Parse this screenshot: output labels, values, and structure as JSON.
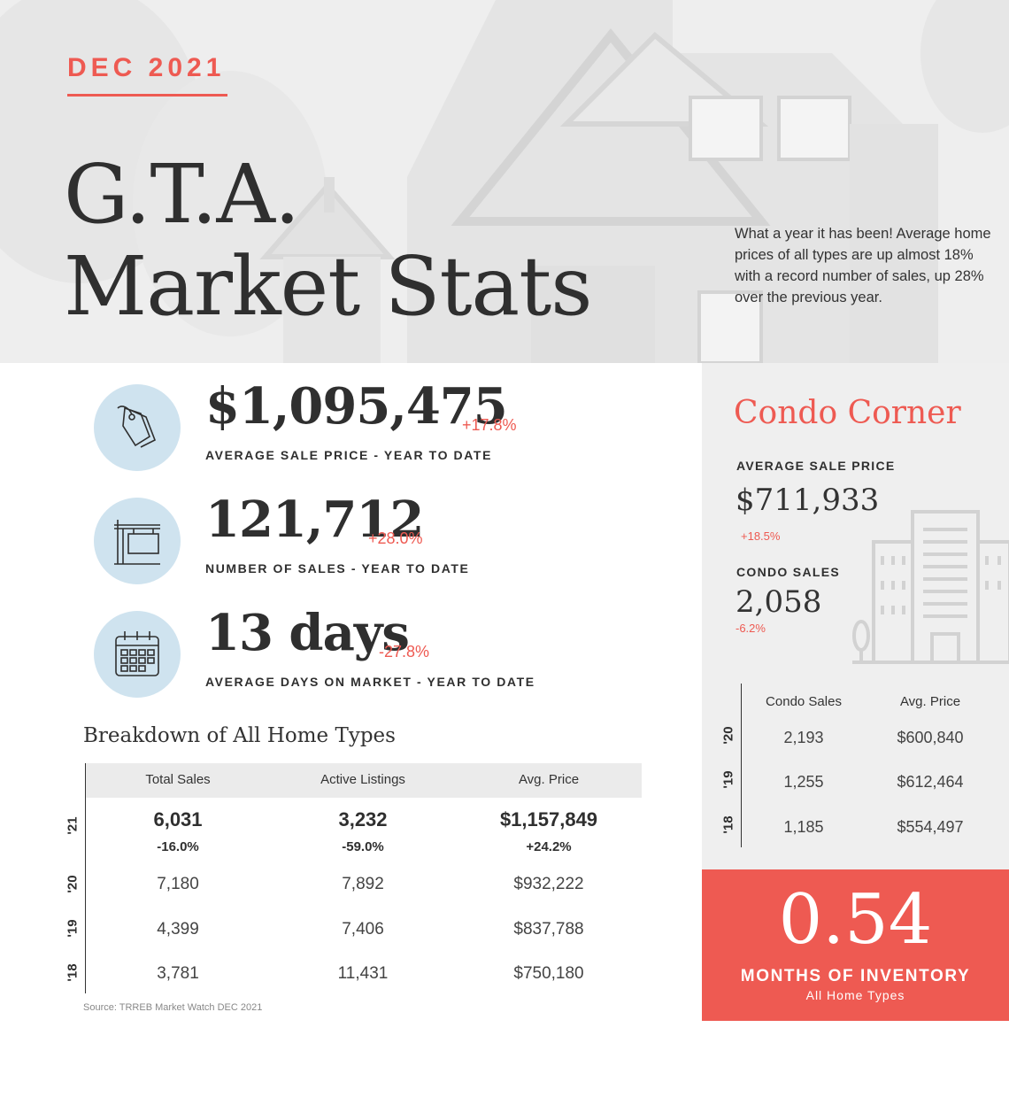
{
  "header": {
    "date": "DEC 2021",
    "title_line1": "G.T.A.",
    "title_line2": "Market Stats",
    "intro": "What a year it has been! Average home prices of all types are up almost 18% with a record number of sales, up 28% over the previous year."
  },
  "kpis": [
    {
      "icon": "price-tag-icon",
      "value": "$1,095,475",
      "change": "+17.8%",
      "label": "AVERAGE SALE PRICE - YEAR TO DATE"
    },
    {
      "icon": "for-sale-sign-icon",
      "value": "121,712",
      "change": "+28.0%",
      "label": "NUMBER OF SALES - YEAR TO DATE"
    },
    {
      "icon": "calendar-icon",
      "value": "13 days",
      "change": "-27.8%",
      "label": "AVERAGE DAYS ON MARKET - YEAR TO DATE"
    }
  ],
  "breakdown": {
    "title": "Breakdown of All Home Types",
    "columns": [
      "Total Sales",
      "Active Listings",
      "Avg. Price"
    ],
    "rows": [
      {
        "year": "'21",
        "values": [
          "6,031",
          "3,232",
          "$1,157,849"
        ],
        "changes": [
          "-16.0%",
          "-59.0%",
          "+24.2%"
        ]
      },
      {
        "year": "'20",
        "values": [
          "7,180",
          "7,892",
          "$932,222"
        ]
      },
      {
        "year": "'19",
        "values": [
          "4,399",
          "7,406",
          "$837,788"
        ]
      },
      {
        "year": "'18",
        "values": [
          "3,781",
          "11,431",
          "$750,180"
        ]
      }
    ],
    "source": "Source: TRREB Market Watch DEC 2021"
  },
  "condo": {
    "title": "Condo Corner",
    "avg_label": "AVERAGE SALE PRICE",
    "avg_value": "$711,933",
    "avg_change": "+18.5%",
    "sales_label": "CONDO SALES",
    "sales_value": "2,058",
    "sales_change": "-6.2%",
    "columns": [
      "Condo Sales",
      "Avg. Price"
    ],
    "rows": [
      {
        "year": "'20",
        "values": [
          "2,193",
          "$600,840"
        ]
      },
      {
        "year": "'19",
        "values": [
          "1,255",
          "$612,464"
        ]
      },
      {
        "year": "'18",
        "values": [
          "1,185",
          "$554,497"
        ]
      }
    ]
  },
  "inventory": {
    "value": "0.54",
    "label": "MONTHS OF INVENTORY",
    "sub": "All Home Types"
  },
  "colors": {
    "accent": "#ee5a52",
    "icon_circle": "#cfe3ef",
    "panel": "#efefef",
    "text": "#2f2f2f"
  }
}
